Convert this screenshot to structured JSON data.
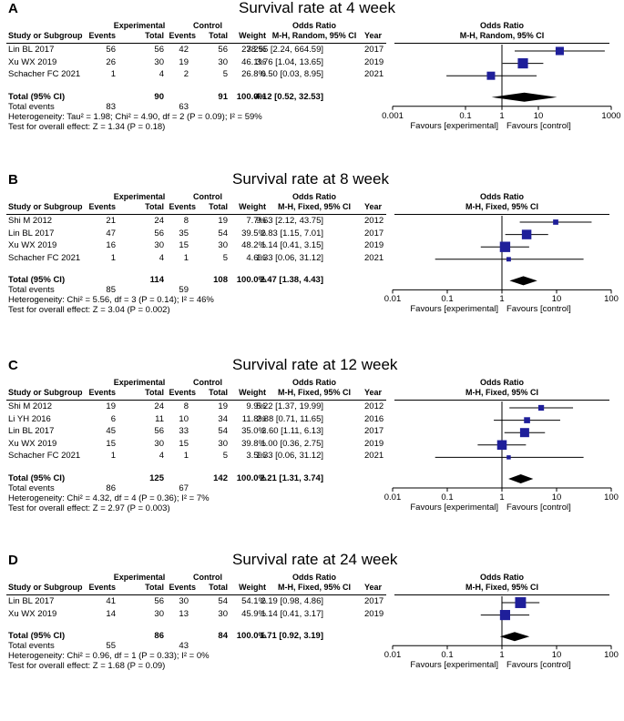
{
  "columns": {
    "study": "Study or Subgroup",
    "experimental": "Experimental",
    "control": "Control",
    "events": "Events",
    "total": "Total",
    "weight": "Weight",
    "odds_ratio": "Odds Ratio",
    "year": "Year"
  },
  "axis": {
    "ticks_main": [
      "0.01",
      "0.1",
      "1",
      "10",
      "100"
    ],
    "ticks_a": [
      "0.001",
      "0.1",
      "1",
      "10",
      "1000"
    ],
    "favours_exp": "Favours [experimental]",
    "favours_ctrl": "Favours [control]"
  },
  "colors": {
    "study_marker": "#1f1f9a",
    "diamond": "#000000"
  },
  "panels": [
    {
      "letter": "A",
      "title": "Survival rate at 4 week",
      "method": "M-H, Random, 95% CI",
      "rows": [
        {
          "study": "Lin BL 2017",
          "e_events": "56",
          "e_total": "56",
          "c_events": "42",
          "c_total": "56",
          "weight": "27.2%",
          "ci": "38.55 [2.24, 664.59]",
          "year": "2017"
        },
        {
          "study": "Xu WX 2019",
          "e_events": "26",
          "e_total": "30",
          "c_events": "19",
          "c_total": "30",
          "weight": "46.1%",
          "ci": "3.76 [1.04, 13.65]",
          "year": "2019"
        },
        {
          "study": "Schacher FC 2021",
          "e_events": "1",
          "e_total": "4",
          "c_events": "2",
          "c_total": "5",
          "weight": "26.8%",
          "ci": "0.50 [0.03, 8.95]",
          "year": "2021"
        }
      ],
      "total": {
        "label": "Total (95% CI)",
        "e_total": "90",
        "c_total": "91",
        "weight": "100.0%",
        "ci": "4.12 [0.52, 32.53]"
      },
      "events": {
        "label": "Total events",
        "e": "83",
        "c": "63"
      },
      "heterogeneity": "Heterogeneity: Tau² = 1.98; Chi² = 4.90, df = 2 (P = 0.09); I² = 59%",
      "overall": "Test for overall effect: Z = 1.34 (P = 0.18)"
    },
    {
      "letter": "B",
      "title": "Survival rate at 8 week",
      "method": "M-H, Fixed, 95% CI",
      "rows": [
        {
          "study": "Shi M 2012",
          "e_events": "21",
          "e_total": "24",
          "c_events": "8",
          "c_total": "19",
          "weight": "7.7%",
          "ci": "9.63 [2.12, 43.75]",
          "year": "2012"
        },
        {
          "study": "Lin BL 2017",
          "e_events": "47",
          "e_total": "56",
          "c_events": "35",
          "c_total": "54",
          "weight": "39.5%",
          "ci": "2.83 [1.15, 7.01]",
          "year": "2017"
        },
        {
          "study": "Xu WX 2019",
          "e_events": "16",
          "e_total": "30",
          "c_events": "15",
          "c_total": "30",
          "weight": "48.2%",
          "ci": "1.14 [0.41, 3.15]",
          "year": "2019"
        },
        {
          "study": "Schacher FC 2021",
          "e_events": "1",
          "e_total": "4",
          "c_events": "1",
          "c_total": "5",
          "weight": "4.6%",
          "ci": "1.33 [0.06, 31.12]",
          "year": "2021"
        }
      ],
      "total": {
        "label": "Total (95% CI)",
        "e_total": "114",
        "c_total": "108",
        "weight": "100.0%",
        "ci": "2.47 [1.38, 4.43]"
      },
      "events": {
        "label": "Total events",
        "e": "85",
        "c": "59"
      },
      "heterogeneity": "Heterogeneity: Chi² = 5.56, df = 3 (P = 0.14); I² = 46%",
      "overall": "Test for overall effect: Z = 3.04 (P = 0.002)"
    },
    {
      "letter": "C",
      "title": "Survival rate at 12 week",
      "method": "M-H, Fixed, 95% CI",
      "rows": [
        {
          "study": "Shi M 2012",
          "e_events": "19",
          "e_total": "24",
          "c_events": "8",
          "c_total": "19",
          "weight": "9.9%",
          "ci": "5.22 [1.37, 19.99]",
          "year": "2012"
        },
        {
          "study": "Li YH 2016",
          "e_events": "6",
          "e_total": "11",
          "c_events": "10",
          "c_total": "34",
          "weight": "11.8%",
          "ci": "2.88 [0.71, 11.65]",
          "year": "2016"
        },
        {
          "study": "Lin BL 2017",
          "e_events": "45",
          "e_total": "56",
          "c_events": "33",
          "c_total": "54",
          "weight": "35.0%",
          "ci": "2.60 [1.11, 6.13]",
          "year": "2017"
        },
        {
          "study": "Xu WX 2019",
          "e_events": "15",
          "e_total": "30",
          "c_events": "15",
          "c_total": "30",
          "weight": "39.8%",
          "ci": "1.00 [0.36, 2.75]",
          "year": "2019"
        },
        {
          "study": "Schacher FC 2021",
          "e_events": "1",
          "e_total": "4",
          "c_events": "1",
          "c_total": "5",
          "weight": "3.5%",
          "ci": "1.33 [0.06, 31.12]",
          "year": "2021"
        }
      ],
      "total": {
        "label": "Total (95% CI)",
        "e_total": "125",
        "c_total": "142",
        "weight": "100.0%",
        "ci": "2.21 [1.31, 3.74]"
      },
      "events": {
        "label": "Total events",
        "e": "86",
        "c": "67"
      },
      "heterogeneity": "Heterogeneity: Chi² = 4.32, df = 4 (P = 0.36); I² = 7%",
      "overall": "Test for overall effect: Z = 2.97 (P = 0.003)"
    },
    {
      "letter": "D",
      "title": "Survival rate at 24 week",
      "method": "M-H, Fixed, 95% CI",
      "rows": [
        {
          "study": "Lin BL 2017",
          "e_events": "41",
          "e_total": "56",
          "c_events": "30",
          "c_total": "54",
          "weight": "54.1%",
          "ci": "2.19 [0.98, 4.86]",
          "year": "2017"
        },
        {
          "study": "Xu WX 2019",
          "e_events": "14",
          "e_total": "30",
          "c_events": "13",
          "c_total": "30",
          "weight": "45.9%",
          "ci": "1.14 [0.41, 3.17]",
          "year": "2019"
        }
      ],
      "total": {
        "label": "Total (95% CI)",
        "e_total": "86",
        "c_total": "84",
        "weight": "100.0%",
        "ci": "1.71 [0.92, 3.19]"
      },
      "events": {
        "label": "Total events",
        "e": "55",
        "c": "43"
      },
      "heterogeneity": "Heterogeneity: Chi² = 0.96, df = 1 (P = 0.33); I² = 0%",
      "overall": "Test for overall effect: Z = 1.68 (P = 0.09)"
    }
  ],
  "chart_data": [
    {
      "type": "forest",
      "title": "Survival rate at 4 week",
      "scale": "log",
      "xlim": [
        0.001,
        1000
      ],
      "ticks": [
        0.001,
        0.1,
        1,
        10,
        1000
      ],
      "studies": [
        {
          "name": "Lin BL 2017",
          "or": 38.55,
          "lo": 2.24,
          "hi": 664.59,
          "weight": 27.2
        },
        {
          "name": "Xu WX 2019",
          "or": 3.76,
          "lo": 1.04,
          "hi": 13.65,
          "weight": 46.1
        },
        {
          "name": "Schacher FC 2021",
          "or": 0.5,
          "lo": 0.03,
          "hi": 8.95,
          "weight": 26.8
        }
      ],
      "pooled": {
        "or": 4.12,
        "lo": 0.52,
        "hi": 32.53
      }
    },
    {
      "type": "forest",
      "title": "Survival rate at 8 week",
      "scale": "log",
      "xlim": [
        0.01,
        100
      ],
      "ticks": [
        0.01,
        0.1,
        1,
        10,
        100
      ],
      "studies": [
        {
          "name": "Shi M 2012",
          "or": 9.63,
          "lo": 2.12,
          "hi": 43.75,
          "weight": 7.7
        },
        {
          "name": "Lin BL 2017",
          "or": 2.83,
          "lo": 1.15,
          "hi": 7.01,
          "weight": 39.5
        },
        {
          "name": "Xu WX 2019",
          "or": 1.14,
          "lo": 0.41,
          "hi": 3.15,
          "weight": 48.2
        },
        {
          "name": "Schacher FC 2021",
          "or": 1.33,
          "lo": 0.06,
          "hi": 31.12,
          "weight": 4.6
        }
      ],
      "pooled": {
        "or": 2.47,
        "lo": 1.38,
        "hi": 4.43
      }
    },
    {
      "type": "forest",
      "title": "Survival rate at 12 week",
      "scale": "log",
      "xlim": [
        0.01,
        100
      ],
      "ticks": [
        0.01,
        0.1,
        1,
        10,
        100
      ],
      "studies": [
        {
          "name": "Shi M 2012",
          "or": 5.22,
          "lo": 1.37,
          "hi": 19.99,
          "weight": 9.9
        },
        {
          "name": "Li YH 2016",
          "or": 2.88,
          "lo": 0.71,
          "hi": 11.65,
          "weight": 11.8
        },
        {
          "name": "Lin BL 2017",
          "or": 2.6,
          "lo": 1.11,
          "hi": 6.13,
          "weight": 35.0
        },
        {
          "name": "Xu WX 2019",
          "or": 1.0,
          "lo": 0.36,
          "hi": 2.75,
          "weight": 39.8
        },
        {
          "name": "Schacher FC 2021",
          "or": 1.33,
          "lo": 0.06,
          "hi": 31.12,
          "weight": 3.5
        }
      ],
      "pooled": {
        "or": 2.21,
        "lo": 1.31,
        "hi": 3.74
      }
    },
    {
      "type": "forest",
      "title": "Survival rate at 24 week",
      "scale": "log",
      "xlim": [
        0.01,
        100
      ],
      "ticks": [
        0.01,
        0.1,
        1,
        10,
        100
      ],
      "studies": [
        {
          "name": "Lin BL 2017",
          "or": 2.19,
          "lo": 0.98,
          "hi": 4.86,
          "weight": 54.1
        },
        {
          "name": "Xu WX 2019",
          "or": 1.14,
          "lo": 0.41,
          "hi": 3.17,
          "weight": 45.9
        }
      ],
      "pooled": {
        "or": 1.71,
        "lo": 0.92,
        "hi": 3.19
      }
    }
  ]
}
